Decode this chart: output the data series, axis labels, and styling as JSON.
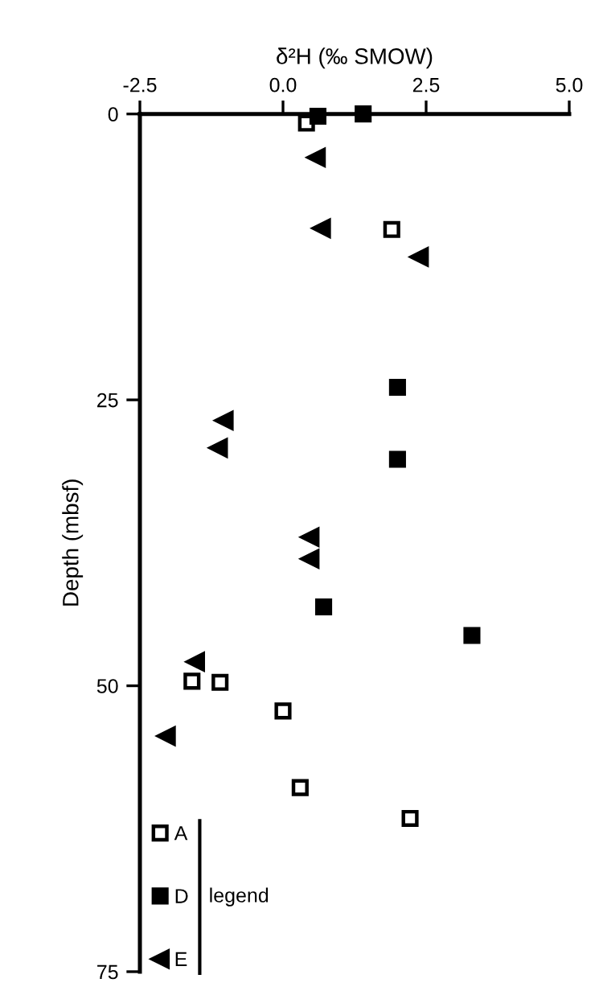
{
  "chart_data": {
    "type": "scatter",
    "xlabel": "δ²H (‰ SMOW)",
    "ylabel": "Depth (mbsf)",
    "legend_title": "legend",
    "xlim": [
      -2.5,
      5.0
    ],
    "xticks": [
      {
        "value": -2.5,
        "label": "-2.5"
      },
      {
        "value": 0,
        "label": "0.0"
      },
      {
        "value": 2.5,
        "label": "2.5"
      },
      {
        "value": 5.0,
        "label": "5.0"
      }
    ],
    "ylim": [
      75,
      0
    ],
    "yticks": [
      0,
      25,
      50,
      75
    ],
    "grid": false,
    "legend": "bottom left",
    "series": [
      {
        "name": "A",
        "color": "#ffffff",
        "marker": "square",
        "x": [
          0.41,
          1.9,
          -1.59,
          -1.1,
          0.0,
          0.3,
          2.22
        ],
        "values": [
          0.8,
          10.1,
          49.6,
          49.7,
          52.2,
          58.9,
          61.6
        ]
      },
      {
        "name": "D",
        "color": "#000000",
        "marker": "square",
        "x": [
          0.61,
          1.4,
          2.0,
          2.0,
          0.71,
          3.3
        ],
        "values": [
          0.2,
          0,
          23.9,
          30.2,
          43.1,
          45.6
        ]
      },
      {
        "name": "E",
        "color": "#000000",
        "marker": "triangle",
        "x": [
          0.58,
          0.67,
          2.38,
          -1.03,
          -1.13,
          0.47,
          0.47,
          -1.53,
          -2.04
        ],
        "values": [
          3.8,
          10.0,
          12.5,
          26.8,
          29.2,
          37.0,
          38.9,
          47.9,
          54.4
        ]
      }
    ]
  }
}
